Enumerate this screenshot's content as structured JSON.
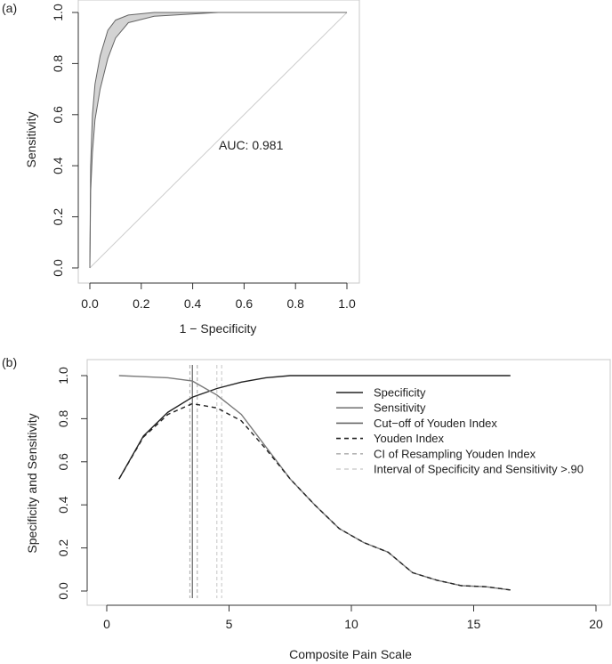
{
  "chart_data": [
    {
      "panel": "(a)",
      "type": "line",
      "title": "",
      "xlabel": "1 − Specificity",
      "ylabel": "Sensitivity",
      "xlim": [
        0,
        1
      ],
      "ylim": [
        0,
        1
      ],
      "xticks": [
        "0.0",
        "0.2",
        "0.4",
        "0.6",
        "0.8",
        "1.0"
      ],
      "yticks": [
        "0.0",
        "0.2",
        "0.4",
        "0.6",
        "0.8",
        "1.0"
      ],
      "annotation": "AUC: 0.981",
      "series": [
        {
          "name": "ROC upper",
          "x": [
            0,
            0.003,
            0.01,
            0.02,
            0.04,
            0.07,
            0.1,
            0.15,
            0.25,
            0.5,
            1.0
          ],
          "y": [
            0,
            0.4,
            0.6,
            0.72,
            0.83,
            0.93,
            0.97,
            0.99,
            1.0,
            1.0,
            1.0
          ]
        },
        {
          "name": "ROC lower",
          "x": [
            0,
            0.003,
            0.01,
            0.02,
            0.04,
            0.07,
            0.1,
            0.15,
            0.25,
            0.5,
            1.0
          ],
          "y": [
            0,
            0.3,
            0.45,
            0.58,
            0.7,
            0.82,
            0.9,
            0.96,
            0.985,
            1.0,
            1.0
          ]
        },
        {
          "name": "Chance line",
          "x": [
            0,
            1
          ],
          "y": [
            0,
            1
          ]
        }
      ],
      "colors": {
        "band": "#d3d3d3",
        "roc": "#666666",
        "chance": "#cccccc"
      }
    },
    {
      "panel": "(b)",
      "type": "line",
      "title": "",
      "xlabel": "Composite Pain Scale",
      "ylabel": "Specificity and Sensitivity",
      "xlim": [
        0,
        20
      ],
      "ylim": [
        0,
        1
      ],
      "xticks": [
        "0",
        "5",
        "10",
        "15",
        "20"
      ],
      "yticks": [
        "0.0",
        "0.2",
        "0.4",
        "0.6",
        "0.8",
        "1.0"
      ],
      "legend_position": "top-right",
      "series": [
        {
          "name": "Specificity",
          "style": "solid",
          "color": "#222222",
          "x": [
            0.5,
            1.5,
            2.5,
            3.5,
            4.5,
            5.5,
            6.5,
            7.5,
            8.5,
            9.5,
            10.5,
            11.5,
            12.5,
            13.5,
            14.5,
            15.5,
            16.5
          ],
          "y": [
            0.52,
            0.72,
            0.83,
            0.9,
            0.94,
            0.97,
            0.99,
            1.0,
            1.0,
            1.0,
            1.0,
            1.0,
            1.0,
            1.0,
            1.0,
            1.0,
            1.0
          ]
        },
        {
          "name": "Sensitivity",
          "style": "solid",
          "color": "#7a7a7a",
          "x": [
            0.5,
            1.5,
            2.5,
            3.5,
            4.5,
            5.5,
            6.5,
            7.5,
            8.5,
            9.5,
            10.5,
            11.5,
            12.5,
            13.5,
            14.5,
            15.5,
            16.5
          ],
          "y": [
            1.0,
            0.995,
            0.99,
            0.975,
            0.91,
            0.82,
            0.67,
            0.52,
            0.4,
            0.29,
            0.225,
            0.18,
            0.085,
            0.05,
            0.025,
            0.02,
            0.005
          ]
        },
        {
          "name": "Youden Index",
          "style": "dashed",
          "color": "#222222",
          "x": [
            0.5,
            1.5,
            2.5,
            3.5,
            4.5,
            5.5,
            6.5,
            7.5,
            8.5,
            9.5,
            10.5,
            11.5,
            12.5,
            13.5,
            14.5,
            15.5,
            16.5
          ],
          "y": [
            0.52,
            0.715,
            0.82,
            0.87,
            0.85,
            0.79,
            0.66,
            0.52,
            0.4,
            0.29,
            0.225,
            0.18,
            0.085,
            0.05,
            0.025,
            0.02,
            0.005
          ]
        }
      ],
      "vlines": [
        {
          "name": "Cut-off of Youden Index",
          "x": 3.5,
          "style": "solid",
          "color": "#666666"
        },
        {
          "name": "CI of Resampling Youden Index",
          "x": 3.4,
          "style": "dashed",
          "color": "#b5b5b5"
        },
        {
          "name": "CI of Resampling Youden Index",
          "x": 3.7,
          "style": "dashed",
          "color": "#b5b5b5"
        },
        {
          "name": "Interval of Specificity and Sensitivity >.90",
          "x": 4.5,
          "style": "dashed",
          "color": "#cfcfcf"
        },
        {
          "name": "Interval of Specificity and Sensitivity >.90",
          "x": 4.7,
          "style": "dashed",
          "color": "#cfcfcf"
        }
      ],
      "legend": [
        {
          "label": "Specificity",
          "style": "solid",
          "color": "#222222"
        },
        {
          "label": "Sensitivity",
          "style": "solid",
          "color": "#7a7a7a"
        },
        {
          "label": "Cut−off of Youden Index",
          "style": "solid",
          "color": "#666666"
        },
        {
          "label": "Youden Index",
          "style": "dashed",
          "color": "#222222"
        },
        {
          "label": "CI of Resampling Youden Index",
          "style": "dashed",
          "color": "#b5b5b5"
        },
        {
          "label": "Interval of Specificity and Sensitivity >.90",
          "style": "dashed",
          "color": "#cfcfcf"
        }
      ]
    }
  ]
}
